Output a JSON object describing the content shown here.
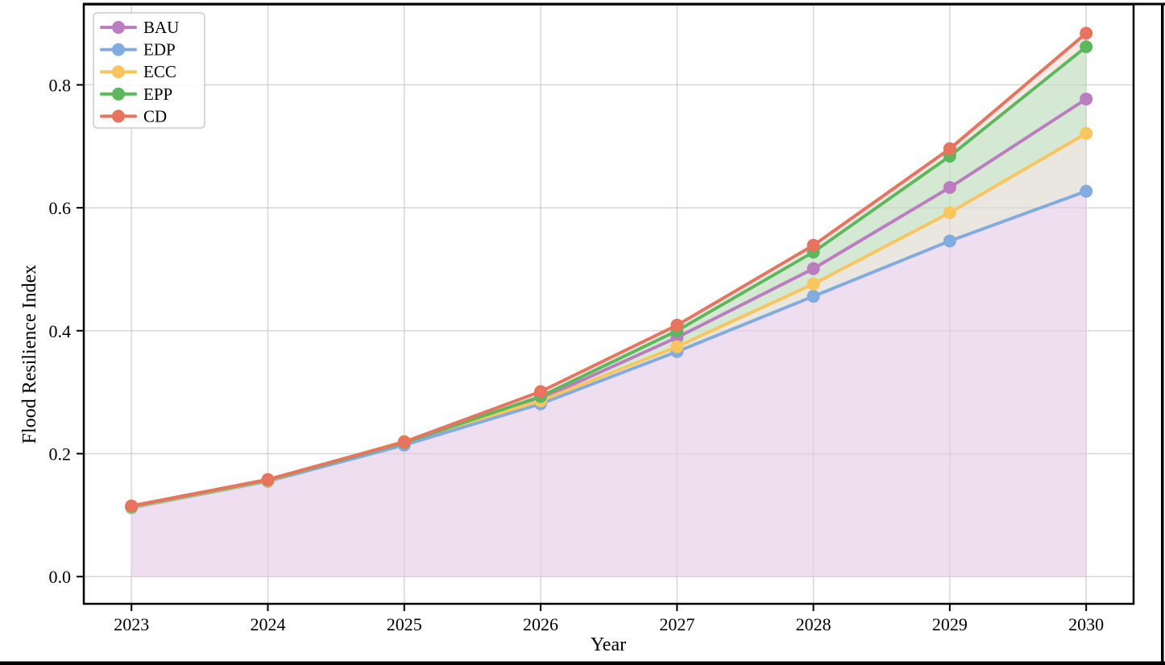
{
  "chart_data": {
    "type": "line",
    "title": "",
    "xlabel": "Year",
    "ylabel": "Flood Resilience Index",
    "x": [
      2023,
      2024,
      2025,
      2026,
      2027,
      2028,
      2029,
      2030
    ],
    "xticklabels": [
      "2023",
      "2024",
      "2025",
      "2026",
      "2027",
      "2028",
      "2029",
      "2030"
    ],
    "yticks": [
      0.0,
      0.2,
      0.4,
      0.6,
      0.8
    ],
    "yticklabels": [
      "0.0",
      "0.2",
      "0.4",
      "0.6",
      "0.8"
    ],
    "xlim": [
      2022.65,
      2030.35
    ],
    "ylim": [
      -0.045,
      0.931
    ],
    "grid": true,
    "grid_color": "#e4e4e4",
    "legend_position": "upper-left",
    "series": [
      {
        "name": "BAU",
        "color": "#bc7dc0",
        "values": [
          0.114,
          0.157,
          0.217,
          0.289,
          0.389,
          0.501,
          0.633,
          0.777
        ]
      },
      {
        "name": "EDP",
        "color": "#82abe0",
        "values": [
          0.112,
          0.155,
          0.214,
          0.281,
          0.366,
          0.456,
          0.546,
          0.627
        ]
      },
      {
        "name": "ECC",
        "color": "#f9c55e",
        "values": [
          0.113,
          0.156,
          0.22,
          0.286,
          0.374,
          0.476,
          0.592,
          0.721
        ]
      },
      {
        "name": "EPP",
        "color": "#5cb85c",
        "values": [
          0.114,
          0.157,
          0.218,
          0.293,
          0.4,
          0.528,
          0.684,
          0.862
        ]
      },
      {
        "name": "CD",
        "color": "#e8735e",
        "values": [
          0.115,
          0.158,
          0.219,
          0.301,
          0.409,
          0.539,
          0.696,
          0.884
        ]
      }
    ],
    "fills": [
      {
        "between": [
          "baseline",
          "EDP"
        ],
        "color": "#efddf0"
      },
      {
        "between": [
          "EDP",
          "ECC"
        ],
        "color": "#eae7e0"
      },
      {
        "between": [
          "ECC",
          "EPP"
        ],
        "color": "#d5e8d3"
      },
      {
        "between": [
          "EPP",
          "CD"
        ],
        "color": "#fbeae5"
      }
    ],
    "legend_items": [
      "BAU",
      "EDP",
      "ECC",
      "EPP",
      "CD"
    ]
  },
  "frame": {
    "border_color": "#000000"
  }
}
